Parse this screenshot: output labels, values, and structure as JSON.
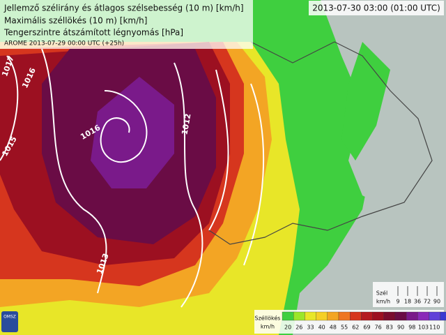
{
  "header": {
    "lines": [
      "Jellemző szélirány és átlagos szélsebesség (10 m) [km/h]",
      "Maximális széllökés (10 m) [km/h]",
      "Tengerszintre átszámított légnyomás [hPa]"
    ],
    "model": "AROME 2013-07-29 00:00 UTC (+25h)",
    "valid": "2013-07-30 03:00 (01:00 UTC)"
  },
  "isobars": [
    {
      "label": "1017"
    },
    {
      "label": "1016"
    },
    {
      "label": "1015"
    },
    {
      "label": "1016"
    },
    {
      "label": "1012"
    },
    {
      "label": "1013"
    }
  ],
  "gust_legend": {
    "title": "Széllökés",
    "unit": "km/h",
    "ticks": [
      20,
      26,
      33,
      40,
      48,
      55,
      62,
      69,
      76,
      83,
      90,
      98,
      103,
      110
    ]
  },
  "wind_legend": {
    "title": "Szél",
    "unit": "km/h",
    "ticks": [
      9,
      18,
      36,
      72,
      90
    ]
  },
  "logo": "OMSZ"
}
